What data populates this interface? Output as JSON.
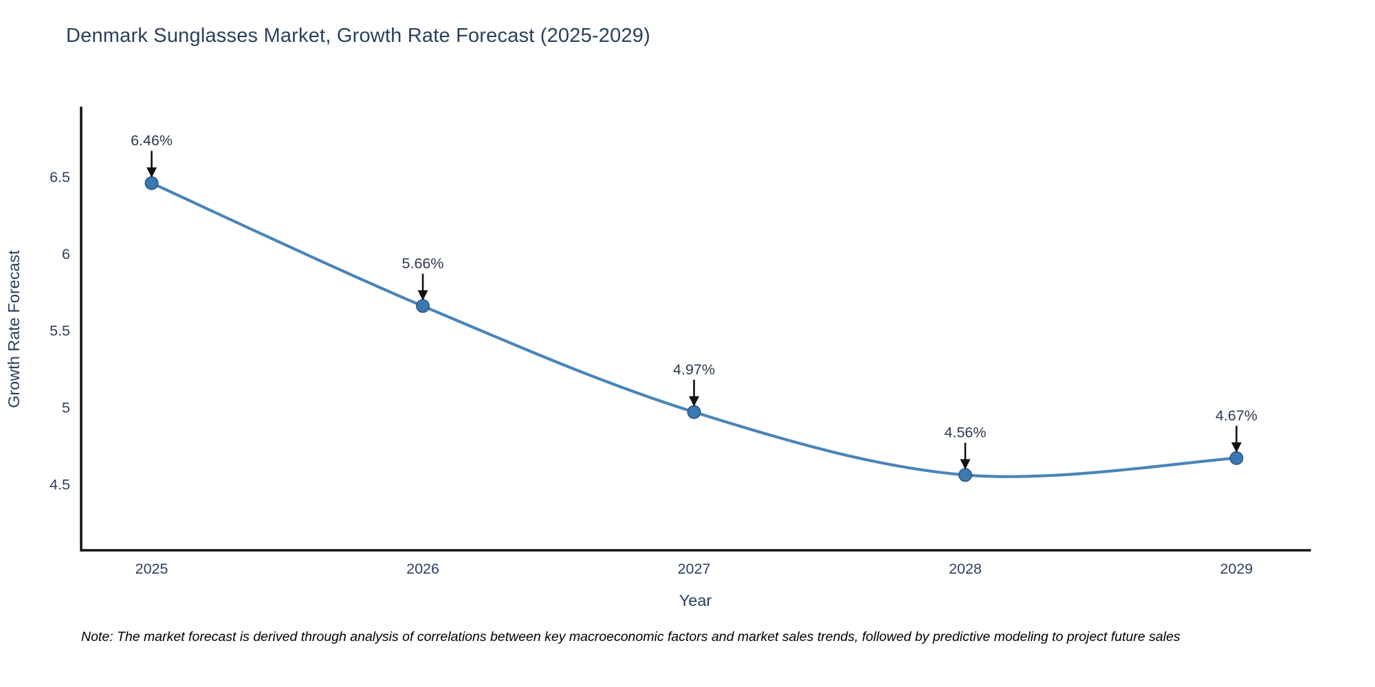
{
  "chart_data": {
    "type": "line",
    "title": "Denmark Sunglasses Market, Growth Rate Forecast (2025-2029)",
    "xlabel": "Year",
    "ylabel": "Growth Rate Forecast",
    "x": [
      2025,
      2026,
      2027,
      2028,
      2029
    ],
    "x_tick_labels": [
      "2025",
      "2026",
      "2027",
      "2028",
      "2029"
    ],
    "series": [
      {
        "name": "Growth Rate Forecast",
        "values": [
          6.46,
          5.66,
          4.97,
          4.56,
          4.67
        ]
      }
    ],
    "point_labels": [
      "6.46%",
      "5.66%",
      "4.97%",
      "4.56%",
      "4.67%"
    ],
    "y_ticks": [
      4.5,
      5,
      5.5,
      6,
      6.5
    ],
    "y_tick_labels": [
      "4.5",
      "5",
      "5.5",
      "6",
      "6.5"
    ],
    "xlim": [
      2024.74,
      2029.27
    ],
    "ylim": [
      4.07,
      6.95
    ],
    "grid": false,
    "legend": "none",
    "line_shape": "spline",
    "colors": {
      "line": "#4a84b8",
      "marker": "#3c79b0",
      "marker_edge": "#27588a",
      "axis": "#111111",
      "text": "#2a3f5f",
      "annotation_text": "#2e3a4e",
      "annotation_arrow": "#111111",
      "note_text": "#000000"
    }
  },
  "note": "Note: The market forecast is derived through analysis of correlations between key macroeconomic factors and market sales trends, followed by predictive modeling to project future sales"
}
